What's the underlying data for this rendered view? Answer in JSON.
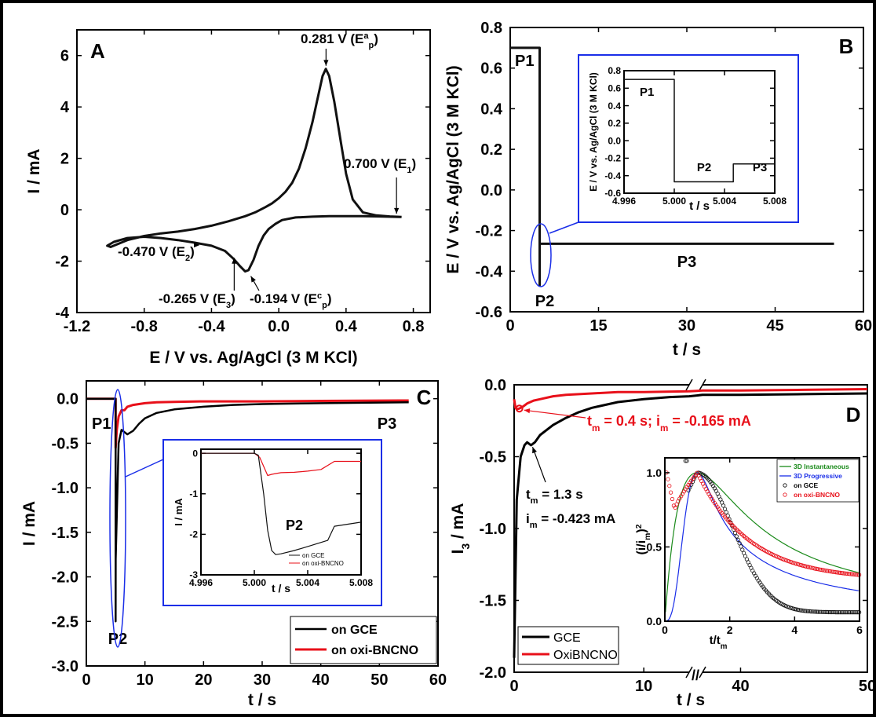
{
  "chart_data": [
    {
      "panel": "A",
      "type": "line",
      "xlabel": "E / V vs. Ag/AgCl (3 M KCl)",
      "ylabel": "I / mA",
      "xlim": [
        -1.2,
        0.9
      ],
      "ylim": [
        -4,
        7
      ],
      "xticks": [
        -1.2,
        -0.8,
        -0.4,
        0.0,
        0.4,
        0.8
      ],
      "yticks": [
        -4,
        -2,
        0,
        2,
        4,
        6
      ],
      "series": [
        {
          "name": "",
          "x": [
            0.73,
            0.66,
            0.58,
            0.5,
            0.44,
            0.4,
            0.37,
            0.33,
            0.3,
            0.28,
            0.26,
            0.23,
            0.2,
            0.16,
            0.12,
            0.08,
            0.04,
            0.0,
            -0.04,
            -0.08,
            -0.14,
            -0.2,
            -0.3,
            -0.4,
            -0.5,
            -0.6,
            -0.7,
            -0.8,
            -0.9,
            -1.0,
            -1.02,
            -0.98,
            -0.9,
            -0.8,
            -0.7,
            -0.6,
            -0.5,
            -0.4,
            -0.32,
            -0.27,
            -0.23,
            -0.2,
            -0.18,
            -0.15,
            -0.12,
            -0.09,
            -0.06,
            -0.02,
            0.02,
            0.1,
            0.2,
            0.3,
            0.4,
            0.5,
            0.6,
            0.73
          ],
          "y": [
            -0.28,
            -0.26,
            -0.22,
            -0.1,
            0.4,
            1.4,
            2.6,
            4.2,
            5.2,
            5.48,
            5.2,
            4.3,
            3.4,
            2.4,
            1.6,
            1.05,
            0.7,
            0.45,
            0.25,
            0.1,
            -0.1,
            -0.25,
            -0.45,
            -0.62,
            -0.75,
            -0.85,
            -0.92,
            -1.02,
            -1.18,
            -1.45,
            -1.4,
            -1.25,
            -1.1,
            -1.05,
            -1.1,
            -1.18,
            -1.28,
            -1.4,
            -1.6,
            -1.9,
            -2.2,
            -2.4,
            -2.35,
            -1.95,
            -1.4,
            -1.0,
            -0.75,
            -0.55,
            -0.4,
            -0.3,
            -0.27,
            -0.25,
            -0.25,
            -0.25,
            -0.26,
            -0.28
          ]
        }
      ],
      "annotations": [
        {
          "label": "0.281 V (E",
          "sub": "p",
          "sup": "a",
          "end": ")",
          "at": [
            0.281,
            5.48
          ]
        },
        {
          "label": "0.700 V (E",
          "sub": "1",
          "sup": "",
          "end": ")",
          "at": [
            0.7,
            -0.28
          ]
        },
        {
          "label": "-0.470 V (E",
          "sub": "2",
          "sup": "",
          "end": ")",
          "at": [
            -0.47,
            -1.25
          ]
        },
        {
          "label": "-0.265 V (E",
          "sub": "3",
          "sup": "",
          "end": ")",
          "at": [
            -0.265,
            -1.75
          ]
        },
        {
          "label": "-0.194 V (E",
          "sub": "p",
          "sup": "c",
          "end": ")",
          "at": [
            -0.194,
            -2.4
          ]
        }
      ]
    },
    {
      "panel": "B",
      "type": "line",
      "xlabel": "t / s",
      "ylabel": "E / V vs. Ag/AgCl (3 M KCl)",
      "xlim": [
        0,
        60
      ],
      "ylim": [
        -0.6,
        0.8
      ],
      "xticks": [
        0,
        15,
        30,
        45,
        60
      ],
      "yticks": [
        -0.6,
        -0.4,
        -0.2,
        0.0,
        0.2,
        0.4,
        0.6,
        0.8
      ],
      "series": [
        {
          "name": "",
          "x": [
            0,
            5.0,
            5.0,
            5.005,
            5.005,
            55
          ],
          "y": [
            0.7,
            0.7,
            -0.47,
            -0.47,
            -0.265,
            -0.265
          ]
        }
      ],
      "step_labels": [
        "P1",
        "P2",
        "P3"
      ],
      "inset": {
        "xlabel": "t / s",
        "ylabel": "E / V vs. Ag/AgCl (3 M KCl)",
        "xlim": [
          4.996,
          5.008
        ],
        "ylim": [
          -0.6,
          0.8
        ],
        "xticks": [
          "4.996",
          "5.000",
          "5.004",
          "5.008"
        ],
        "yticks": [
          "-0.6",
          "-0.4",
          "-0.2",
          "0.0",
          "0.2",
          "0.4",
          "0.6",
          "0.8"
        ],
        "x": [
          4.996,
          5.0,
          5.0,
          5.0047,
          5.0047,
          5.008
        ],
        "y": [
          0.7,
          0.7,
          -0.47,
          -0.47,
          -0.265,
          -0.265
        ]
      }
    },
    {
      "panel": "C",
      "type": "line",
      "xlabel": "t / s",
      "ylabel": "I / mA",
      "xlim": [
        0,
        60
      ],
      "ylim": [
        -3.0,
        0.2
      ],
      "xticks": [
        0,
        10,
        20,
        30,
        40,
        50,
        60
      ],
      "yticks": [
        -3.0,
        -2.5,
        -2.0,
        -1.5,
        -1.0,
        -0.5,
        0.0
      ],
      "step_labels": [
        "P1",
        "P2",
        "P3"
      ],
      "series": [
        {
          "name": "on GCE",
          "color": "#000000",
          "x": [
            0,
            5.0,
            5.0,
            5.01,
            5.5,
            6,
            7,
            8,
            9,
            10,
            12,
            15,
            20,
            25,
            30,
            40,
            55
          ],
          "y": [
            0,
            0,
            -2.5,
            -1.8,
            -0.5,
            -0.35,
            -0.4,
            -0.36,
            -0.28,
            -0.22,
            -0.16,
            -0.12,
            -0.09,
            -0.07,
            -0.06,
            -0.05,
            -0.04
          ]
        },
        {
          "name": "on oxi-BNCNO",
          "color": "#e8101a",
          "x": [
            0,
            5.0,
            5.0,
            5.2,
            5.5,
            6,
            6.5,
            7,
            8,
            10,
            12,
            15,
            20,
            30,
            40,
            55
          ],
          "y": [
            0,
            0,
            -0.55,
            -0.35,
            -0.2,
            -0.13,
            -0.13,
            -0.09,
            -0.07,
            -0.05,
            -0.04,
            -0.035,
            -0.03,
            -0.03,
            -0.025,
            -0.02
          ]
        }
      ],
      "inset": {
        "xlabel": "t / s",
        "ylabel": "I / mA",
        "annotation": "P2",
        "xlim": [
          4.996,
          5.008
        ],
        "ylim": [
          -3,
          0.1
        ],
        "xticks": [
          "4.996",
          "5.000",
          "5.004",
          "5.008"
        ],
        "yticks": [
          "-3",
          "-2",
          "-1",
          "0"
        ],
        "legend": [
          "on GCE",
          "on oxi-BNCNO"
        ],
        "gce": {
          "x": [
            4.996,
            5.0,
            5.0003,
            5.0007,
            5.001,
            5.0013,
            5.0016,
            5.002,
            5.003,
            5.004,
            5.0055,
            5.006,
            5.008
          ],
          "y": [
            0,
            0,
            -0.05,
            -1.0,
            -1.9,
            -2.4,
            -2.5,
            -2.48,
            -2.4,
            -2.3,
            -2.15,
            -1.8,
            -1.7
          ]
        },
        "oxi": {
          "x": [
            4.996,
            5.0,
            5.0004,
            5.0008,
            5.001,
            5.0013,
            5.0016,
            5.002,
            5.003,
            5.004,
            5.005,
            5.006,
            5.008
          ],
          "y": [
            0,
            0,
            -0.1,
            -0.4,
            -0.55,
            -0.52,
            -0.5,
            -0.48,
            -0.47,
            -0.44,
            -0.4,
            -0.2,
            -0.2
          ]
        }
      }
    },
    {
      "panel": "D",
      "type": "line",
      "xlabel": "t / s",
      "ylabel": "I_3 / mA",
      "ylim": [
        -2.0,
        0.0
      ],
      "xticks": [
        "0",
        "10",
        "40",
        "50"
      ],
      "yticks": [
        "-2.0",
        "-1.5",
        "-1.0",
        "-0.5",
        "0.0"
      ],
      "axis_break": "//",
      "series": [
        {
          "name": "GCE",
          "color": "#000000",
          "x": [
            0,
            0.2,
            0.5,
            0.8,
            1.0,
            1.3,
            1.6,
            2,
            3,
            4,
            5,
            6,
            8,
            10,
            12,
            13.5,
            37,
            40,
            45,
            50
          ],
          "y": [
            -1.9,
            -0.8,
            -0.5,
            -0.42,
            -0.4,
            -0.42,
            -0.4,
            -0.35,
            -0.28,
            -0.23,
            -0.19,
            -0.16,
            -0.12,
            -0.1,
            -0.085,
            -0.08,
            -0.07,
            -0.07,
            -0.065,
            -0.06
          ]
        },
        {
          "name": "OxiBNCNO",
          "color": "#e8101a",
          "x": [
            0,
            0.1,
            0.2,
            0.4,
            0.7,
            1.0,
            1.5,
            2,
            3,
            4,
            6,
            8,
            10,
            13.5,
            37,
            40,
            45,
            50
          ],
          "y": [
            -0.1,
            -0.16,
            -0.17,
            -0.165,
            -0.15,
            -0.13,
            -0.11,
            -0.1,
            -0.08,
            -0.07,
            -0.06,
            -0.05,
            -0.05,
            -0.045,
            -0.04,
            -0.04,
            -0.035,
            -0.03
          ]
        }
      ],
      "annotations": [
        {
          "text": "t",
          "sub": "m",
          "rest": " = 0.4 s; i",
          "sub2": "m",
          "rest2": " = -0.165 mA",
          "color": "#e8101a"
        },
        {
          "text": "t",
          "sub": "m",
          "rest": " = 1.3 s",
          "color": "#000000"
        },
        {
          "text": "i",
          "sub": "m",
          "rest": " = -0.423 mA",
          "color": "#000000"
        }
      ],
      "inset": {
        "xlabel": "t/t_m",
        "ylabel": "(i/i_m)^2",
        "xlim": [
          0,
          6
        ],
        "ylim": [
          0,
          1.1
        ],
        "xticks": [
          "0",
          "2",
          "4",
          "6"
        ],
        "yticks": [
          "0.0",
          "0.5",
          "1.0"
        ],
        "legend": [
          "3D Instantaneous",
          "3D Progressive",
          "on GCE",
          "on oxi-BNCNO"
        ],
        "legend_colors": [
          "#1a8a1a",
          "#1a2ee8",
          "#000000",
          "#e8101a"
        ]
      }
    }
  ],
  "panel_labels": [
    "A",
    "B",
    "C",
    "D"
  ]
}
